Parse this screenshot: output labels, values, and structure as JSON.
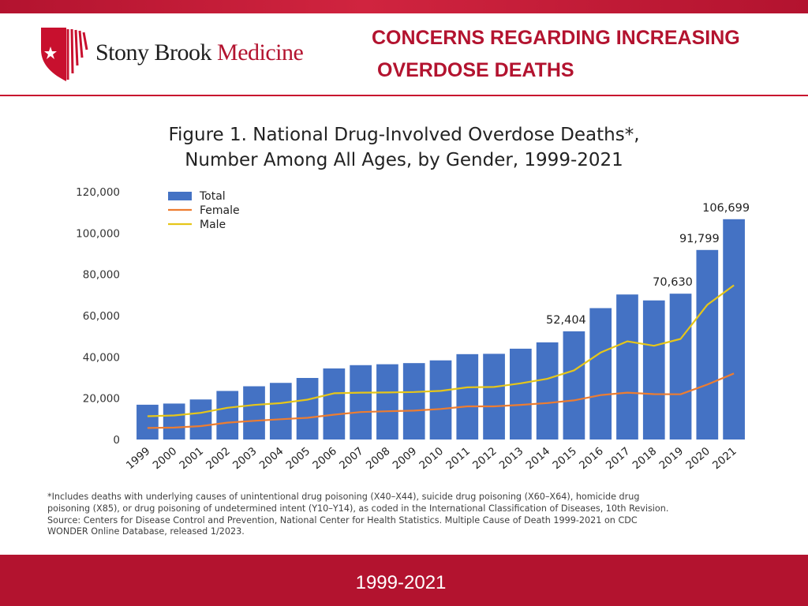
{
  "header": {
    "brand_primary": "Stony Brook",
    "brand_secondary": "Medicine",
    "title_line1": "CONCERNS REGARDING INCREASING",
    "title_line2": "OVERDOSE DEATHS"
  },
  "footer": {
    "year_range": "1999-2021"
  },
  "footnote": [
    "*Includes deaths with underlying causes of unintentional drug poisoning (X40–X44), suicide drug poisoning (X60–X64), homicide drug",
    "poisoning (X85), or drug poisoning of undetermined intent (Y10–Y14), as coded in the International Classification of Diseases, 10th Revision.",
    "Source: Centers for Disease Control and Prevention, National Center for Health Statistics. Multiple Cause of Death 1999-2021 on CDC",
    "WONDER Online Database, released 1/2023."
  ],
  "colors": {
    "brand_red": "#b3132f",
    "bar_total": "#4472c4",
    "line_female": "#ed7d31",
    "line_male": "#e6c619"
  },
  "chart_data": {
    "type": "bar",
    "title_line1": "Figure 1. National Drug-Involved Overdose Deaths*,",
    "title_line2": "Number Among All Ages, by Gender, 1999-2021",
    "xlabel": "",
    "ylabel": "",
    "ylim": [
      0,
      120000
    ],
    "yticks": [
      0,
      20000,
      40000,
      60000,
      80000,
      100000,
      120000
    ],
    "ytick_labels": [
      "0",
      "20,000",
      "40,000",
      "60,000",
      "80,000",
      "100,000",
      "120,000"
    ],
    "categories": [
      "1999",
      "2000",
      "2001",
      "2002",
      "2003",
      "2004",
      "2005",
      "2006",
      "2007",
      "2008",
      "2009",
      "2010",
      "2011",
      "2012",
      "2013",
      "2014",
      "2015",
      "2016",
      "2017",
      "2018",
      "2019",
      "2020",
      "2021"
    ],
    "legend_position": "top-left",
    "series": [
      {
        "name": "Total",
        "kind": "bar",
        "values": [
          16849,
          17415,
          19394,
          23518,
          25785,
          27424,
          29813,
          34425,
          36010,
          36450,
          37004,
          38329,
          41340,
          41502,
          43982,
          47055,
          52404,
          63632,
          70237,
          67367,
          70630,
          91799,
          106699
        ]
      },
      {
        "name": "Female",
        "kind": "line",
        "values": [
          5591,
          5776,
          6484,
          8166,
          9042,
          9819,
          10517,
          12043,
          13297,
          13685,
          13992,
          14799,
          16066,
          16051,
          16778,
          17675,
          18944,
          21521,
          22693,
          21966,
          21891,
          26591,
          31985
        ]
      },
      {
        "name": "Male",
        "kind": "line",
        "values": [
          11258,
          11639,
          12910,
          15352,
          16743,
          17605,
          19296,
          22382,
          22713,
          22765,
          23012,
          23530,
          25274,
          25451,
          27204,
          29380,
          33460,
          42111,
          47544,
          45401,
          48739,
          65208,
          74714
        ]
      }
    ],
    "data_labels": [
      {
        "category": "2015",
        "text": "52,404"
      },
      {
        "category": "2019",
        "text": "70,630"
      },
      {
        "category": "2020",
        "text": "91,799"
      },
      {
        "category": "2021",
        "text": "106,699"
      }
    ]
  }
}
